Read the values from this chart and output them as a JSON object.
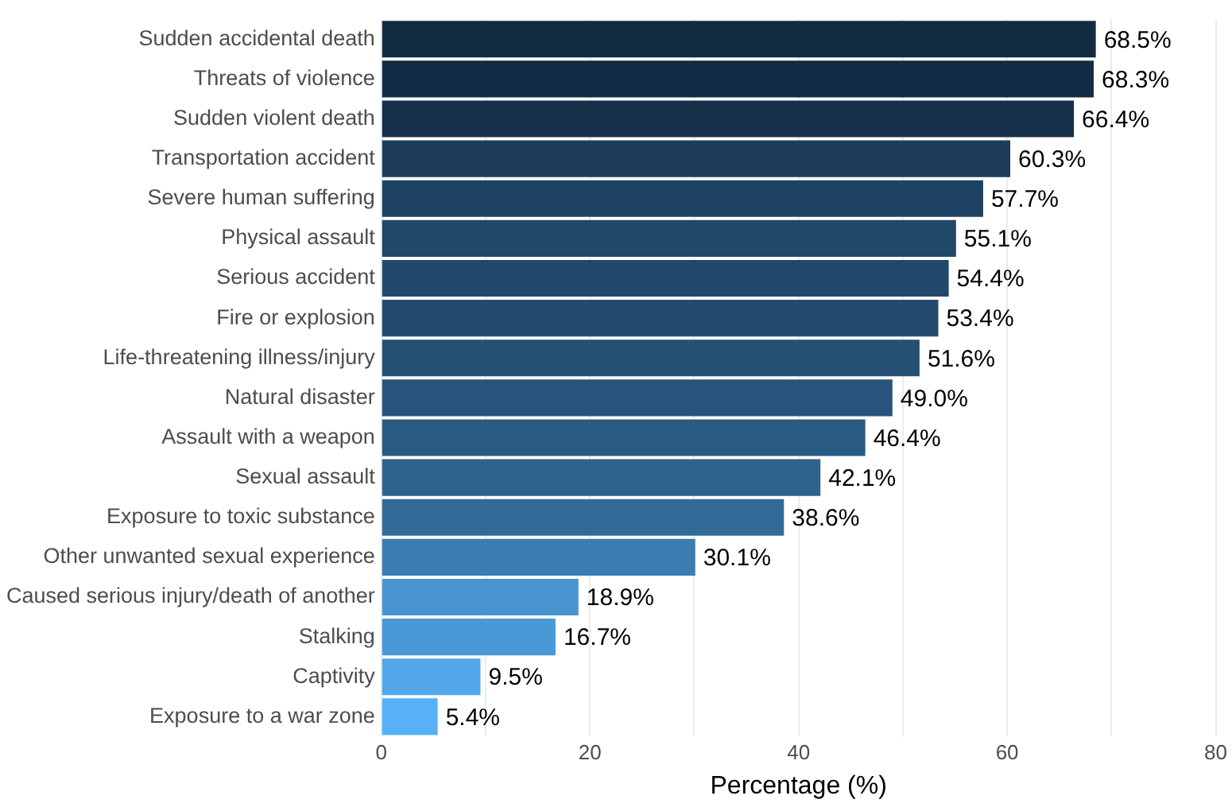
{
  "chart_data": {
    "type": "bar",
    "orientation": "horizontal",
    "xlabel": "Percentage (%)",
    "categories": [
      "Sudden accidental death",
      "Threats of violence",
      "Sudden violent death",
      "Transportation accident",
      "Severe human suffering",
      "Physical assault",
      "Serious accident",
      "Fire or explosion",
      "Life-threatening illness/injury",
      "Natural disaster",
      "Assault with a weapon",
      "Sexual assault",
      "Exposure to toxic substance",
      "Other unwanted sexual experience",
      "Caused serious injury/death of another",
      "Stalking",
      "Captivity",
      "Exposure to a war zone"
    ],
    "values": [
      68.5,
      68.3,
      66.4,
      60.3,
      57.7,
      55.1,
      54.4,
      53.4,
      51.6,
      49.0,
      46.4,
      42.1,
      38.6,
      30.1,
      18.9,
      16.7,
      9.5,
      5.4
    ],
    "value_labels": [
      "68.5%",
      "68.3%",
      "66.4%",
      "60.3%",
      "57.7%",
      "55.1%",
      "54.4%",
      "53.4%",
      "51.6%",
      "49.0%",
      "46.4%",
      "42.1%",
      "38.6%",
      "30.1%",
      "18.9%",
      "16.7%",
      "9.5%",
      "5.4%"
    ],
    "colors": [
      "#132b43",
      "#132b44",
      "#152f49",
      "#1c3c5a",
      "#1e4262",
      "#214769",
      "#22496b",
      "#234b6e",
      "#254f73",
      "#28547b",
      "#2a5a82",
      "#2f638e",
      "#336b98",
      "#3c7db1",
      "#4894d0",
      "#4a99d7",
      "#52a8eb",
      "#56b1f7"
    ],
    "xlim": [
      0,
      80
    ],
    "xticks": [
      0,
      {
        "value": 10,
        "label": null
      },
      20,
      {
        "value": 30,
        "label": null
      },
      40,
      {
        "value": 50,
        "label": null
      },
      60,
      {
        "value": 70,
        "label": null
      },
      80
    ],
    "grid": "x",
    "legend": false
  }
}
